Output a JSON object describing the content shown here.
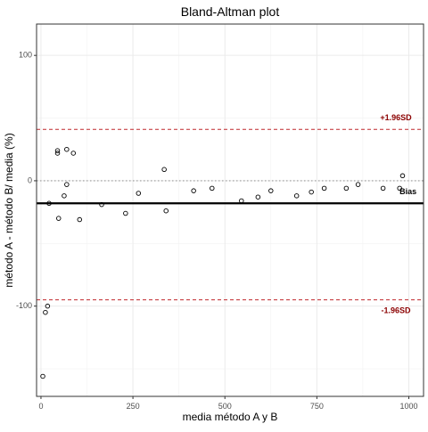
{
  "chart_data": {
    "type": "scatter",
    "title": "Bland-Altman plot",
    "xlabel": "media método A y B",
    "ylabel": "método A - método B/ media (%)",
    "xlim": [
      -12,
      1040
    ],
    "ylim": [
      -172,
      125
    ],
    "x_ticks": [
      0,
      250,
      500,
      750,
      1000
    ],
    "x_tick_labels": [
      "0",
      "250",
      "500",
      "750",
      "1000"
    ],
    "y_ticks": [
      -100,
      0,
      100
    ],
    "y_tick_labels": [
      "-100",
      "0",
      "100"
    ],
    "grid": true,
    "lines": [
      {
        "name": "upper_loa",
        "y": 41,
        "style": "dashed",
        "color": "#c0282d"
      },
      {
        "name": "zero",
        "y": 0,
        "style": "dotted",
        "color": "#9a9a9a"
      },
      {
        "name": "bias",
        "y": -18,
        "style": "solid",
        "color": "#000000"
      },
      {
        "name": "lower_loa",
        "y": -95,
        "style": "dashed",
        "color": "#c0282d"
      }
    ],
    "annotations": [
      {
        "text": "+1.96SD",
        "x": 965,
        "y": 50,
        "color": "#8b0000"
      },
      {
        "text": "Bias",
        "x": 998,
        "y": -9,
        "color": "#000000"
      },
      {
        "text": "-1.96SD",
        "x": 965,
        "y": -104,
        "color": "#8b0000"
      }
    ],
    "points": [
      {
        "x": 5,
        "y": -156
      },
      {
        "x": 12,
        "y": -105
      },
      {
        "x": 18,
        "y": -100
      },
      {
        "x": 22,
        "y": -18
      },
      {
        "x": 45,
        "y": 24
      },
      {
        "x": 45,
        "y": 22
      },
      {
        "x": 48,
        "y": -30
      },
      {
        "x": 63,
        "y": -12
      },
      {
        "x": 70,
        "y": 25
      },
      {
        "x": 70,
        "y": -3
      },
      {
        "x": 88,
        "y": 22
      },
      {
        "x": 105,
        "y": -31
      },
      {
        "x": 165,
        "y": -19
      },
      {
        "x": 230,
        "y": -26
      },
      {
        "x": 265,
        "y": -10
      },
      {
        "x": 335,
        "y": 9
      },
      {
        "x": 340,
        "y": -24
      },
      {
        "x": 415,
        "y": -8
      },
      {
        "x": 465,
        "y": -6
      },
      {
        "x": 545,
        "y": -16
      },
      {
        "x": 590,
        "y": -13
      },
      {
        "x": 625,
        "y": -8
      },
      {
        "x": 695,
        "y": -12
      },
      {
        "x": 735,
        "y": -9
      },
      {
        "x": 770,
        "y": -6
      },
      {
        "x": 830,
        "y": -6
      },
      {
        "x": 862,
        "y": -3
      },
      {
        "x": 930,
        "y": -6
      },
      {
        "x": 975,
        "y": -6
      },
      {
        "x": 983,
        "y": 4
      }
    ]
  }
}
